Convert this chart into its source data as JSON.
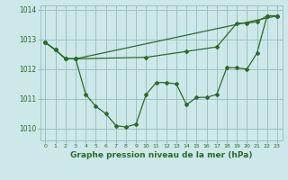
{
  "background_color": "#cce8e8",
  "plot_bg_color": "#cce8e8",
  "grid_color": "#99bbbb",
  "line_color": "#2d6a2d",
  "xlabel": "Graphe pression niveau de la mer (hPa)",
  "ylim": [
    1009.6,
    1014.15
  ],
  "xlim": [
    -0.5,
    23.5
  ],
  "yticks": [
    1010,
    1011,
    1012,
    1013,
    1014
  ],
  "xticks": [
    0,
    1,
    2,
    3,
    4,
    5,
    6,
    7,
    8,
    9,
    10,
    11,
    12,
    13,
    14,
    15,
    16,
    17,
    18,
    19,
    20,
    21,
    22,
    23
  ],
  "xtick_labels": [
    "0",
    "1",
    "2",
    "3",
    "4",
    "5",
    "6",
    "7",
    "8",
    "9",
    "10",
    "11",
    "12",
    "13",
    "14",
    "15",
    "16",
    "17",
    "18",
    "19",
    "20",
    "21",
    "22",
    "23"
  ],
  "line1_x": [
    0,
    1,
    2,
    3,
    4,
    5,
    6,
    7,
    8,
    9,
    10,
    11,
    12,
    13,
    14,
    15,
    16,
    17,
    18,
    19,
    20,
    21,
    22,
    23
  ],
  "line1_y": [
    1012.9,
    1012.65,
    1012.35,
    1012.35,
    1011.15,
    1010.75,
    1010.5,
    1010.1,
    1010.05,
    1010.15,
    1011.15,
    1011.55,
    1011.55,
    1011.5,
    1010.8,
    1011.05,
    1011.05,
    1011.15,
    1012.05,
    1012.05,
    1012.0,
    1012.55,
    1013.8,
    1013.8
  ],
  "line2_x": [
    0,
    1,
    2,
    3,
    23
  ],
  "line2_y": [
    1012.9,
    1012.65,
    1012.35,
    1012.35,
    1013.8
  ],
  "line3_x": [
    0,
    1,
    2,
    3,
    10,
    14,
    17,
    19,
    20,
    21,
    22,
    23
  ],
  "line3_y": [
    1012.9,
    1012.65,
    1012.35,
    1012.35,
    1012.4,
    1012.6,
    1012.75,
    1013.55,
    1013.55,
    1013.6,
    1013.8,
    1013.8
  ],
  "markersize": 2.0,
  "linewidth": 0.9
}
